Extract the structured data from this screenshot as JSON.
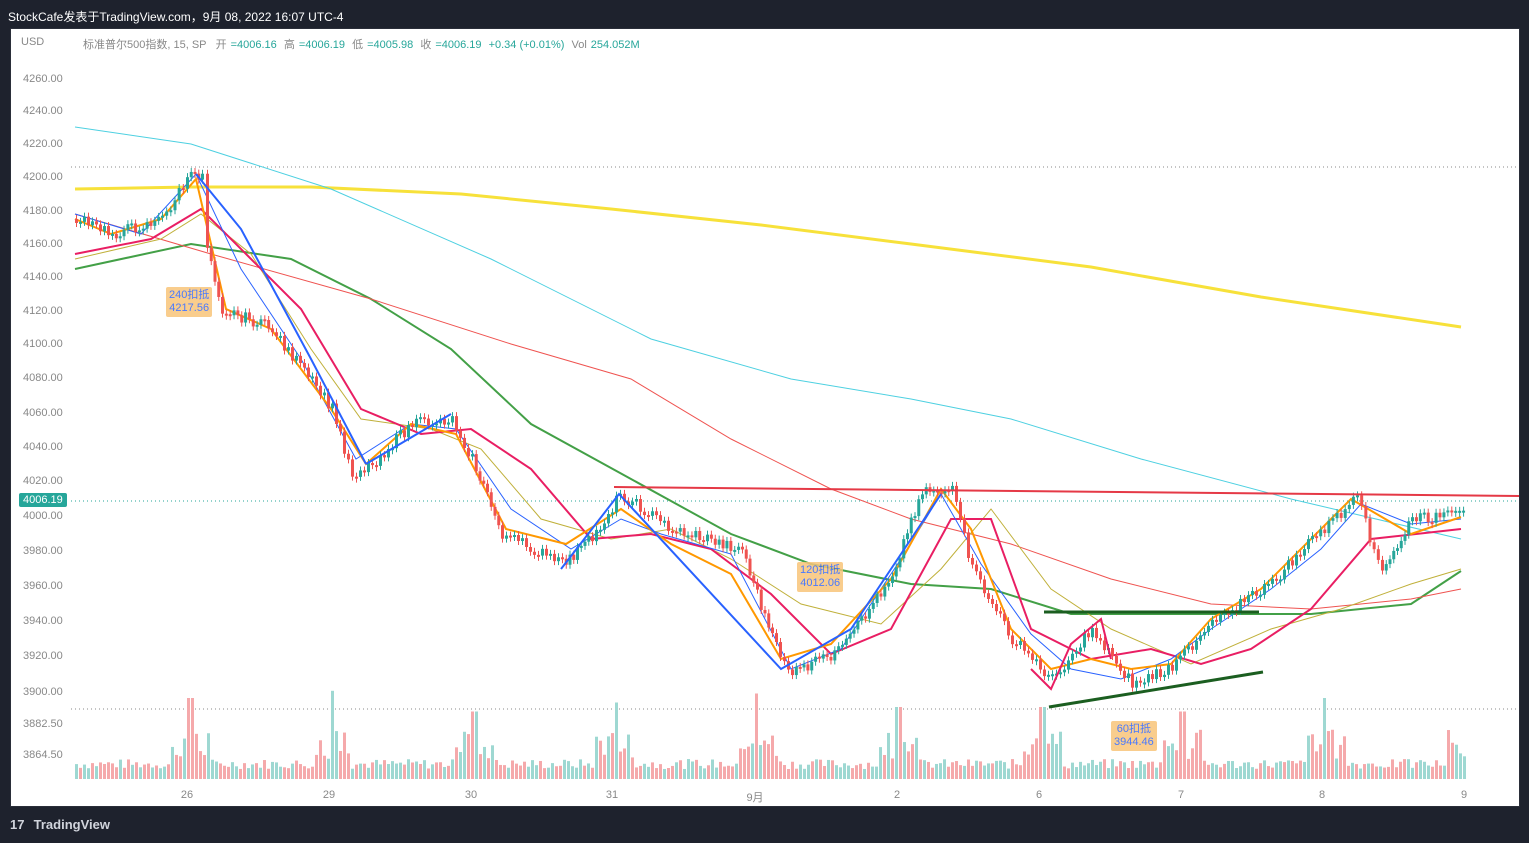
{
  "header": {
    "text": "StockCafe发表于TradingView.com，9月 08, 2022 16:07 UTC-4"
  },
  "legend": {
    "currency": "USD",
    "symbol": "标准普尔500指数, 15, SP",
    "open_label": "开",
    "open": "=4006.16",
    "high_label": "高",
    "high": "=4006.19",
    "low_label": "低",
    "low": "=4005.98",
    "close_label": "收",
    "close": "=4006.19",
    "change": "+0.34 (+0.01%)",
    "vol_label": "Vol",
    "vol": "254.052M"
  },
  "price_tag": "4006.19",
  "y_axis": [
    "4260.00",
    "4240.00",
    "4220.00",
    "4200.00",
    "4180.00",
    "4160.00",
    "4140.00",
    "4120.00",
    "4100.00",
    "4080.00",
    "4060.00",
    "4040.00",
    "4020.00",
    "4000.00",
    "3980.00",
    "3960.00",
    "3940.00",
    "3920.00",
    "3900.00",
    "3882.50",
    "3864.50"
  ],
  "x_axis": [
    "26",
    "29",
    "30",
    "31",
    "9月",
    "2",
    "6",
    "7",
    "8",
    "9"
  ],
  "notes": [
    {
      "line1": "240扣抵",
      "line2": "4217.56"
    },
    {
      "line1": "120扣抵",
      "line2": "4012.06"
    },
    {
      "line1": "60扣抵",
      "line2": "3944.46"
    }
  ],
  "colors": {
    "ma_yellow": "#f7e13a",
    "ma_cyan": "#4dd0e1",
    "ma_green": "#43a047",
    "ma_red": "#ef5350",
    "ma_pink": "#e91e63",
    "ma_orange": "#ff9800",
    "ma_blue": "#2962ff",
    "ma_olive": "#c0b03a",
    "resistance": "#e53946",
    "support": "#1b5e20",
    "candle_up": "#26a69a",
    "candle_down": "#ef5350"
  },
  "footer": {
    "brand": "TradingView"
  }
}
